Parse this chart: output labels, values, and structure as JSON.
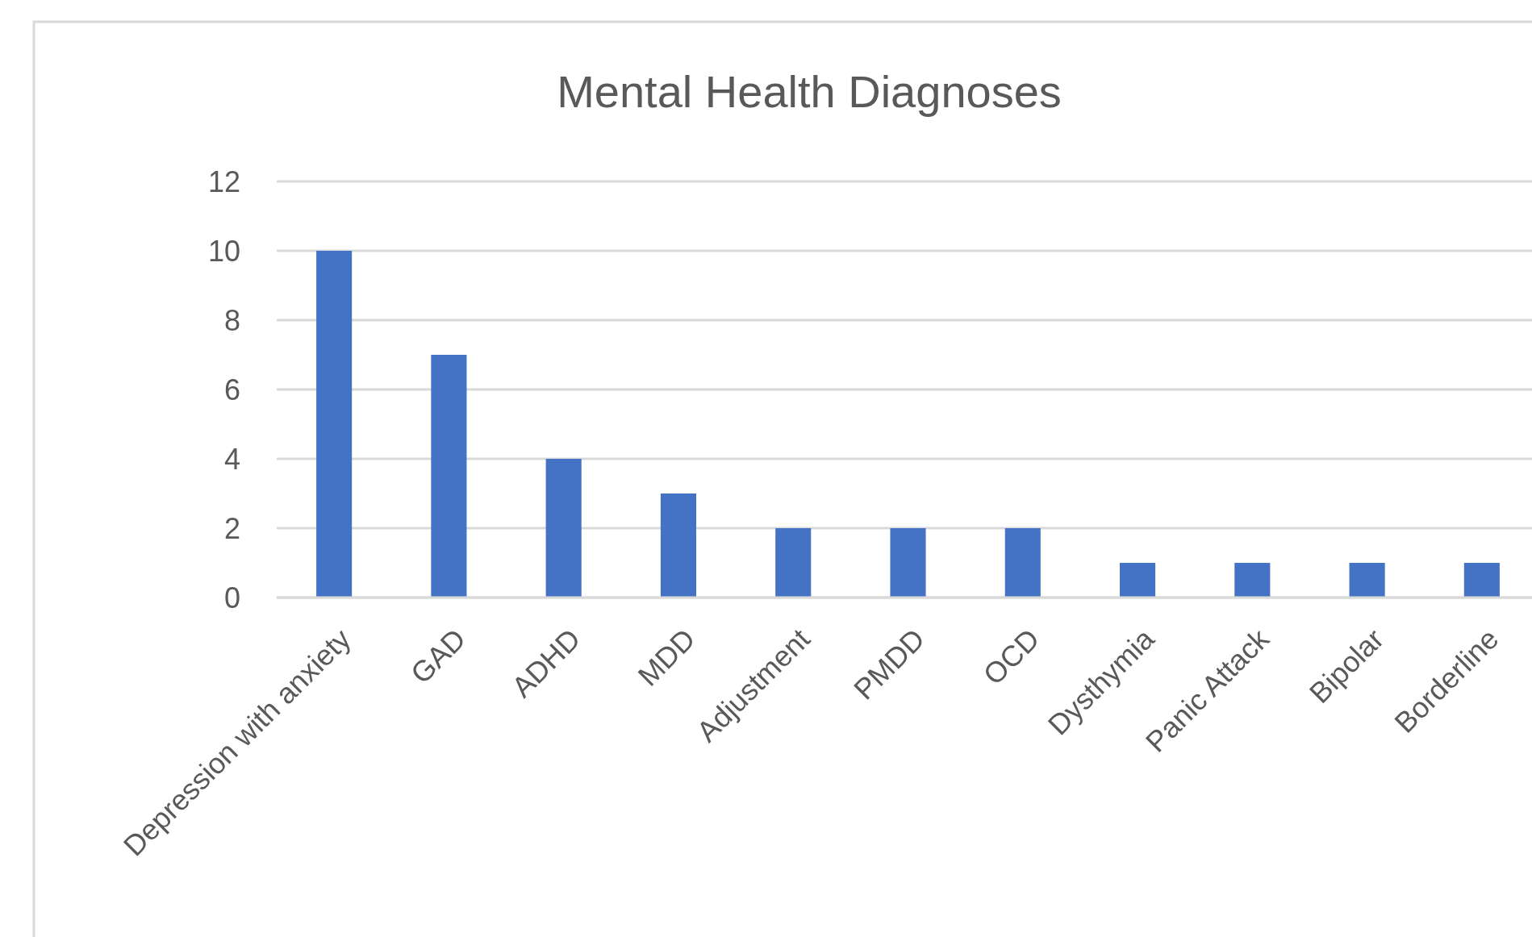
{
  "chart_data": {
    "type": "bar",
    "title": "Mental Health Diagnoses",
    "categories": [
      "Depression with anxiety",
      "GAD",
      "ADHD",
      "MDD",
      "Adjustment",
      "PMDD",
      "OCD",
      "Dysthymia",
      "Panic Attack",
      "Bipolar",
      "Borderline"
    ],
    "values": [
      10,
      7,
      4,
      3,
      2,
      2,
      2,
      1,
      1,
      1,
      1
    ],
    "color": "#4472c4",
    "ylim": [
      0,
      12
    ],
    "yticks": [
      0,
      2,
      4,
      6,
      8,
      10,
      12
    ],
    "grid": "y"
  }
}
